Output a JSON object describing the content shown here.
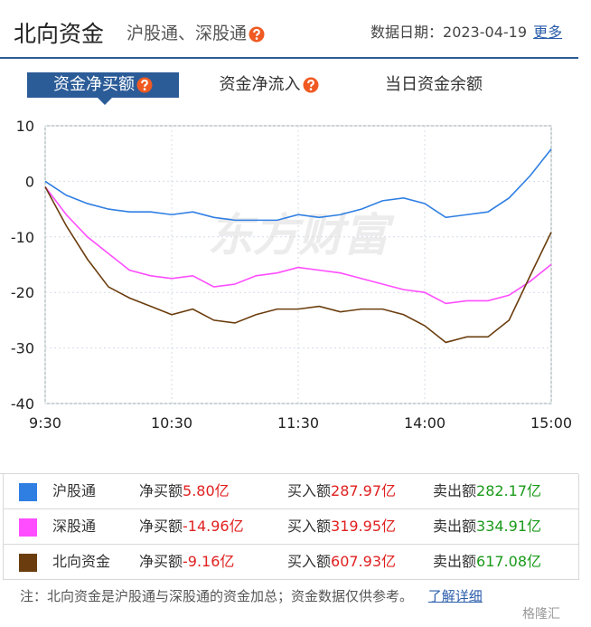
{
  "header": {
    "title": "北向资金",
    "subtitle": "沪股通、深股通",
    "date_label": "数据日期：",
    "date": "2023-04-19",
    "more": "更多"
  },
  "tabs": [
    "资金净买额",
    "资金净流入",
    "当日资金余额"
  ],
  "chart_data": {
    "type": "line",
    "watermark": "东方财富",
    "x": [
      0,
      10,
      20,
      30,
      40,
      50,
      60,
      70,
      80,
      90,
      100,
      110,
      120,
      130,
      140,
      150,
      160,
      170,
      180,
      190,
      200,
      210,
      220,
      230,
      240
    ],
    "xlim": [
      0,
      240
    ],
    "xticks": [
      {
        "value": 0,
        "label": "9:30"
      },
      {
        "value": 60,
        "label": "10:30"
      },
      {
        "value": 120,
        "label": "11:30"
      },
      {
        "value": 180,
        "label": "14:00"
      },
      {
        "value": 240,
        "label": "15:00"
      }
    ],
    "ylim": [
      -40,
      10
    ],
    "yticks": [
      10,
      0,
      -10,
      -20,
      -30,
      -40
    ],
    "grid": true,
    "series": [
      {
        "name": "沪股通",
        "color": "#2f7fe3",
        "values": [
          0,
          -2.5,
          -4,
          -5,
          -5.5,
          -5.5,
          -6,
          -5.5,
          -6.5,
          -7,
          -7,
          -7,
          -6,
          -6.5,
          -6,
          -5,
          -3.5,
          -3,
          -4,
          -6.5,
          -6,
          -5.5,
          -3,
          1,
          5.8
        ]
      },
      {
        "name": "深股通",
        "color": "#ff4dff",
        "values": [
          -1,
          -6,
          -10,
          -13,
          -16,
          -17,
          -17.5,
          -17,
          -19,
          -18.5,
          -17,
          -16.5,
          -15.5,
          -16,
          -16.5,
          -17.5,
          -18.5,
          -19.5,
          -20,
          -22,
          -21.5,
          -21.5,
          -20.5,
          -18,
          -14.96
        ]
      },
      {
        "name": "北向资金",
        "color": "#6b3d0e",
        "values": [
          -1,
          -8,
          -14,
          -19,
          -21,
          -22.5,
          -24,
          -23,
          -25,
          -25.5,
          -24,
          -23,
          -23,
          -22.5,
          -23.5,
          -23,
          -23,
          -24,
          -26,
          -29,
          -28,
          -28,
          -25,
          -17,
          -9.16
        ]
      }
    ]
  },
  "table": {
    "rows": [
      {
        "net_buy_label": "净买额",
        "net_buy": "5.80亿",
        "buy_label": "买入额",
        "buy": "287.97亿",
        "sell_label": "卖出额",
        "sell": "282.17亿"
      },
      {
        "net_buy_label": "净买额",
        "net_buy": "-14.96亿",
        "buy_label": "买入额",
        "buy": "319.95亿",
        "sell_label": "卖出额",
        "sell": "334.91亿"
      },
      {
        "net_buy_label": "净买额",
        "net_buy": "-9.16亿",
        "buy_label": "买入额",
        "buy": "607.93亿",
        "sell_label": "卖出额",
        "sell": "617.08亿"
      }
    ]
  },
  "footer": {
    "note": "注：北向资金是沪股通与深股通的资金加总；资金数据仅供参考。",
    "link": "了解详细"
  },
  "corner_mark": "格隆汇"
}
